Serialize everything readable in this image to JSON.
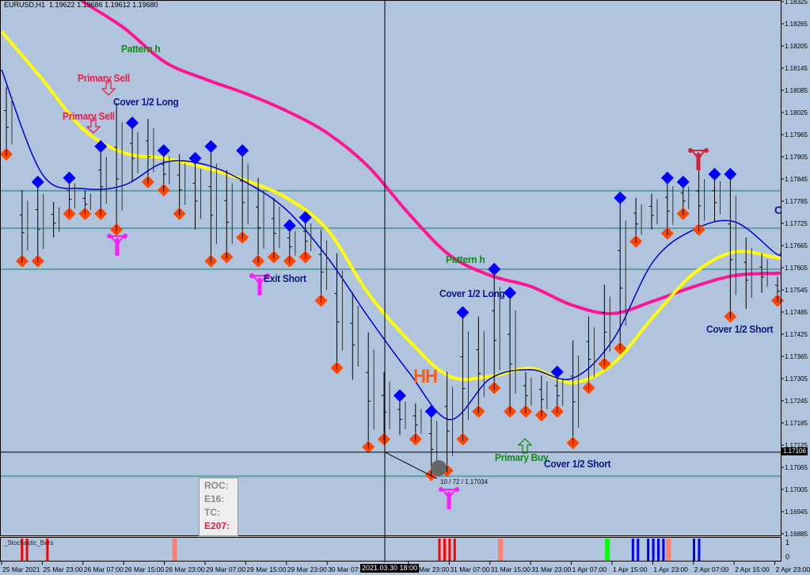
{
  "header": {
    "symbol_timeframe": "EURUSD,H1",
    "ohlc": "1.19622 1.19686 1.19612 1.19680"
  },
  "colors": {
    "background": "#b0c4de",
    "ma_slow": "#ff1493",
    "ma_mid": "#ffff00",
    "ma_fast": "#0000cd",
    "level_lines": "#5f9ea0",
    "high_marker": "#0000ff",
    "low_marker": "#ff4500",
    "bars": "#000000"
  },
  "annotations": {
    "pattern_h_1": "Pattern h",
    "primary_sell_1": "Primary Sell",
    "primary_sell_2": "Primary Sell",
    "cover_long_1": "Cover 1/2 Long",
    "exit_short": "Exit Short",
    "pattern_h_2": "Pattern h",
    "cover_long_2": "Cover 1/2 Long",
    "hh": "HH",
    "primary_buy": "Primary Buy",
    "cover_short_1": "Cover 1/2 Short",
    "cover_short_2": "Cover 1/2 Short",
    "c_label": "C",
    "trendline_readout": "10 / 72 / 1.17034"
  },
  "info_box": {
    "roc": "ROC:",
    "e16": "E16:",
    "tc": "TC:",
    "e207": "E207:"
  },
  "crosshair": {
    "time": "2021.03.30 18:00",
    "price": "1.17106"
  },
  "indicator": {
    "name": "_Stochastic_Bars",
    "scale_top": "1",
    "scale_bottom": "0"
  },
  "chart_data": {
    "type": "ohlc",
    "price_axis_labels": [
      "1.18325",
      "1.18265",
      "1.18205",
      "1.18145",
      "1.18085",
      "1.18025",
      "1.17965",
      "1.17905",
      "1.17845",
      "1.17785",
      "1.17725",
      "1.17665",
      "1.17605",
      "1.17545",
      "1.17485",
      "1.17425",
      "1.17365",
      "1.17305",
      "1.17245",
      "1.17185",
      "1.17125",
      "1.17065",
      "1.17005",
      "1.16945",
      "1.16885"
    ],
    "ylim": [
      1.16885,
      1.18325
    ],
    "time_axis_labels": [
      "25 Mar 2021",
      "25 Mar 23:00",
      "26 Mar 07:00",
      "26 Mar 15:00",
      "26 Mar 23:00",
      "29 Mar 07:00",
      "29 Mar 15:00",
      "29 Mar 23:00",
      "30 Mar 07:00",
      "",
      "30 Mar 23:00",
      "31 Mar 07:00",
      "31 Mar 15:00",
      "31 Mar 23:00",
      "1 Apr 07:00",
      "1 Apr 15:00",
      "1 Apr 23:00",
      "2 Apr 07:00",
      "2 Apr 15:00",
      "2 Apr 23:00"
    ],
    "bars_high_low": [
      [
        1.18094,
        1.17912
      ],
      [
        1.17815,
        1.17623
      ],
      [
        1.17837,
        1.17623
      ],
      [
        1.17783,
        1.17687
      ],
      [
        1.17848,
        1.17751
      ],
      [
        1.17815,
        1.17751
      ],
      [
        1.17933,
        1.17751
      ],
      [
        1.18051,
        1.17708
      ],
      [
        1.17997,
        1.17837
      ],
      [
        1.18008,
        1.17837
      ],
      [
        1.17922,
        1.17815
      ],
      [
        1.17912,
        1.17751
      ],
      [
        1.17901,
        1.17708
      ],
      [
        1.17933,
        1.17623
      ],
      [
        1.17869,
        1.17634
      ],
      [
        1.17922,
        1.17687
      ],
      [
        1.17848,
        1.17623
      ],
      [
        1.17794,
        1.17634
      ],
      [
        1.17719,
        1.17623
      ],
      [
        1.17741,
        1.17634
      ],
      [
        1.17708,
        1.17516
      ],
      [
        1.17644,
        1.17334
      ],
      [
        1.17537,
        1.17302
      ],
      [
        1.1743,
        1.1712
      ],
      [
        1.17323,
        1.17141
      ],
      [
        1.17259,
        1.17152
      ],
      [
        1.17238,
        1.17141
      ],
      [
        1.17216,
        1.17045
      ],
      [
        1.17323,
        1.17056
      ],
      [
        1.17484,
        1.17141
      ],
      [
        1.17473,
        1.17216
      ],
      [
        1.17601,
        1.1728
      ],
      [
        1.17537,
        1.17216
      ],
      [
        1.17323,
        1.17216
      ],
      [
        1.17313,
        1.17206
      ],
      [
        1.17323,
        1.17216
      ],
      [
        1.17409,
        1.17131
      ],
      [
        1.17473,
        1.1728
      ],
      [
        1.17559,
        1.17345
      ],
      [
        1.17794,
        1.17387
      ],
      [
        1.17794,
        1.17676
      ],
      [
        1.17805,
        1.17708
      ],
      [
        1.17848,
        1.17698
      ],
      [
        1.17837,
        1.17751
      ],
      [
        1.17869,
        1.17708
      ],
      [
        1.17858,
        1.1773
      ],
      [
        1.17858,
        1.17473
      ],
      [
        1.17687,
        1.17494
      ],
      [
        1.17644,
        1.17537
      ],
      [
        1.1758,
        1.17516
      ]
    ],
    "high_marker_bars": [
      2,
      4,
      6,
      8,
      10,
      12,
      13,
      15,
      18,
      19,
      25,
      27,
      29,
      31,
      32,
      35,
      39,
      42,
      43,
      45,
      46
    ],
    "low_marker_bars": [
      0,
      1,
      2,
      4,
      5,
      6,
      7,
      9,
      10,
      11,
      13,
      14,
      15,
      16,
      17,
      18,
      19,
      20,
      21,
      23,
      24,
      26,
      27,
      28,
      29,
      30,
      31,
      32,
      33,
      34,
      35,
      36,
      37,
      38,
      39,
      40,
      42,
      43,
      44,
      46,
      49
    ],
    "moving_averages": [
      {
        "values": [
          1.18479,
          1.18404,
          1.18325,
          1.18254,
          1.18162,
          1.18115,
          1.18076,
          1.18029,
          1.17969,
          1.17879,
          1.17751,
          1.17639,
          1.17584,
          1.17554,
          1.17504,
          1.17481,
          1.17515,
          1.17554,
          1.17584,
          1.1759
        ]
      },
      {
        "values": [
          1.18244,
          1.18115,
          1.1798,
          1.17916,
          1.17901,
          1.17875,
          1.17841,
          1.17794,
          1.17708,
          1.17536,
          1.17408,
          1.17311,
          1.17311,
          1.17333,
          1.17294,
          1.17344,
          1.17472,
          1.1759,
          1.17648,
          1.17633
        ]
      },
      {
        "values": [
          1.18141,
          1.17858,
          1.17819,
          1.17828,
          1.1789,
          1.17884,
          1.17836,
          1.17761,
          1.17633,
          1.17472,
          1.17322,
          1.17194,
          1.17305,
          1.17329,
          1.17305,
          1.17408,
          1.17622,
          1.17708,
          1.17729,
          1.17644
        ]
      }
    ],
    "horizontal_levels": [
      1.17813,
      1.17712,
      1.17601,
      1.17041
    ],
    "trendline": {
      "from_price": 1.17106,
      "to_price": 1.17034
    },
    "stochastic_bars": [
      {
        "bar": 4,
        "value": 1,
        "color": "#ff0000"
      },
      {
        "bar": 5,
        "value": 1,
        "color": "#ff0000"
      },
      {
        "bar": 9,
        "value": 1,
        "color": "#ff0000"
      },
      {
        "bar": 34,
        "value": 1,
        "color": "#fa8072"
      },
      {
        "bar": 86,
        "value": 1,
        "color": "#ff0000"
      },
      {
        "bar": 87,
        "value": 1,
        "color": "#ff0000"
      },
      {
        "bar": 88,
        "value": 1,
        "color": "#ff0000"
      },
      {
        "bar": 89,
        "value": 1,
        "color": "#ff0000"
      },
      {
        "bar": 98,
        "value": 1,
        "color": "#fa8072"
      },
      {
        "bar": 119,
        "value": 1,
        "color": "#00ff00"
      },
      {
        "bar": 124,
        "value": 1,
        "color": "#0000ff"
      },
      {
        "bar": 125,
        "value": 1,
        "color": "#0000ff"
      },
      {
        "bar": 127,
        "value": 1,
        "color": "#0000ff"
      },
      {
        "bar": 128,
        "value": 1,
        "color": "#0000ff"
      },
      {
        "bar": 129,
        "value": 1,
        "color": "#0000ff"
      },
      {
        "bar": 130,
        "value": 1,
        "color": "#0000ff"
      },
      {
        "bar": 131,
        "value": 1,
        "color": "#fa8072"
      },
      {
        "bar": 136,
        "value": 1,
        "color": "#0000ff"
      },
      {
        "bar": 137,
        "value": 1,
        "color": "#0000ff"
      }
    ]
  }
}
